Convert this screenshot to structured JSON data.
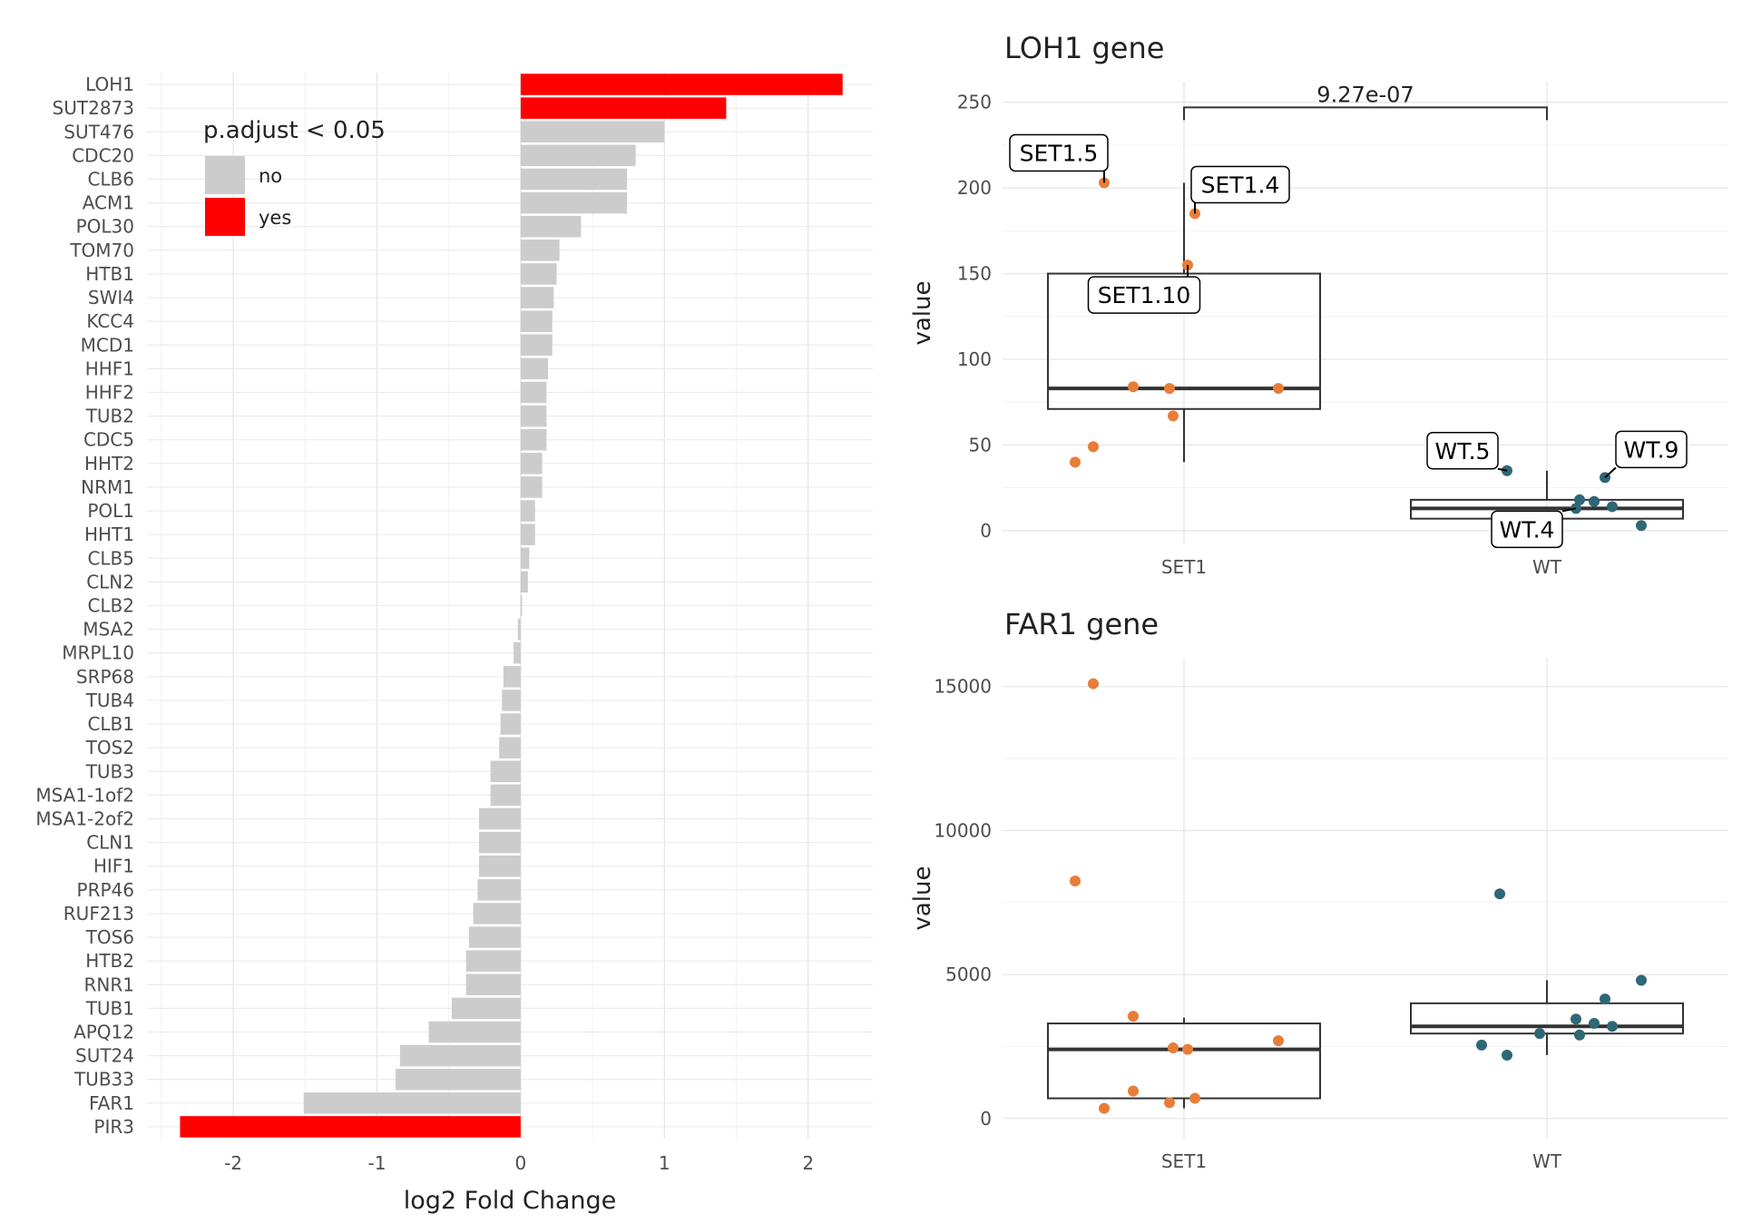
{
  "chart_data": [
    {
      "type": "bar",
      "orientation": "horizontal",
      "xlabel": "log2 Fold Change",
      "ylabel": "",
      "xlim": [
        -2.6,
        2.45
      ],
      "xticks": [
        -2,
        -1,
        0,
        1,
        2
      ],
      "grid": true,
      "legend": {
        "title": "p.adjust < 0.05",
        "placement": "top-left (inside plot)",
        "items": [
          {
            "label": "no",
            "color": "#cccccc"
          },
          {
            "label": "yes",
            "color": "#ff0000"
          }
        ]
      },
      "categories": [
        "LOH1",
        "SUT2873",
        "SUT476",
        "CDC20",
        "CLB6",
        "ACM1",
        "POL30",
        "TOM70",
        "HTB1",
        "SWI4",
        "KCC4",
        "MCD1",
        "HHF1",
        "HHF2",
        "TUB2",
        "CDC5",
        "HHT2",
        "NRM1",
        "POL1",
        "HHT1",
        "CLB5",
        "CLN2",
        "CLB2",
        "MSA2",
        "MRPL10",
        "SRP68",
        "TUB4",
        "CLB1",
        "TOS2",
        "TUB3",
        "MSA1-1of2",
        "MSA1-2of2",
        "CLN1",
        "HIF1",
        "PRP46",
        "RUF213",
        "TOS6",
        "HTB2",
        "RNR1",
        "TUB1",
        "APQ12",
        "SUT24",
        "TUB33",
        "FAR1",
        "PIR3"
      ],
      "values": [
        2.24,
        1.43,
        1.0,
        0.8,
        0.74,
        0.74,
        0.42,
        0.27,
        0.25,
        0.23,
        0.22,
        0.22,
        0.19,
        0.18,
        0.18,
        0.18,
        0.15,
        0.15,
        0.1,
        0.1,
        0.06,
        0.05,
        0.01,
        -0.02,
        -0.05,
        -0.12,
        -0.13,
        -0.14,
        -0.15,
        -0.21,
        -0.21,
        -0.29,
        -0.29,
        -0.29,
        -0.3,
        -0.33,
        -0.36,
        -0.38,
        -0.38,
        -0.48,
        -0.64,
        -0.84,
        -0.87,
        -1.51,
        -2.37
      ],
      "significant": [
        "yes",
        "yes",
        "no",
        "no",
        "no",
        "no",
        "no",
        "no",
        "no",
        "no",
        "no",
        "no",
        "no",
        "no",
        "no",
        "no",
        "no",
        "no",
        "no",
        "no",
        "no",
        "no",
        "no",
        "no",
        "no",
        "no",
        "no",
        "no",
        "no",
        "no",
        "no",
        "no",
        "no",
        "no",
        "no",
        "no",
        "no",
        "no",
        "no",
        "no",
        "no",
        "no",
        "no",
        "no",
        "yes"
      ]
    },
    {
      "type": "box",
      "title": "LOH1 gene",
      "xlabel": "",
      "ylabel": "value",
      "categories": [
        "SET1",
        "WT"
      ],
      "ylim": [
        -8,
        262
      ],
      "yticks": [
        0,
        50,
        100,
        150,
        200,
        250
      ],
      "colors": {
        "SET1": "#e87d3a",
        "WT": "#2e6776"
      },
      "boxes": [
        {
          "group": "SET1",
          "min": 40,
          "q1": 71,
          "median": 83,
          "q3": 150,
          "max": 203
        },
        {
          "group": "WT",
          "min": 0,
          "q1": 7,
          "median": 13,
          "q3": 18,
          "max": 35
        }
      ],
      "points": [
        {
          "group": "SET1",
          "offset": -0.3,
          "value": 40
        },
        {
          "group": "SET1",
          "offset": -0.25,
          "value": 49
        },
        {
          "group": "SET1",
          "offset": -0.22,
          "value": 203
        },
        {
          "group": "SET1",
          "offset": -0.14,
          "value": 84
        },
        {
          "group": "SET1",
          "offset": -0.04,
          "value": 83
        },
        {
          "group": "SET1",
          "offset": -0.03,
          "value": 67
        },
        {
          "group": "SET1",
          "offset": 0.01,
          "value": 155
        },
        {
          "group": "SET1",
          "offset": 0.03,
          "value": 185
        },
        {
          "group": "SET1",
          "offset": 0.26,
          "value": 83
        },
        {
          "group": "WT",
          "offset": -0.11,
          "value": 35
        },
        {
          "group": "WT",
          "offset": 0.08,
          "value": 13
        },
        {
          "group": "WT",
          "offset": 0.09,
          "value": 18
        },
        {
          "group": "WT",
          "offset": 0.13,
          "value": 17
        },
        {
          "group": "WT",
          "offset": 0.16,
          "value": 31
        },
        {
          "group": "WT",
          "offset": 0.18,
          "value": 14
        },
        {
          "group": "WT",
          "offset": 0.26,
          "value": 3
        }
      ],
      "labels": [
        {
          "text": "SET1.5",
          "group": "SET1",
          "offset": -0.22,
          "value": 203
        },
        {
          "text": "SET1.4",
          "group": "SET1",
          "offset": 0.03,
          "value": 185
        },
        {
          "text": "SET1.10",
          "group": "SET1",
          "offset": 0.01,
          "value": 155
        },
        {
          "text": "WT.5",
          "group": "WT",
          "offset": -0.11,
          "value": 35
        },
        {
          "text": "WT.9",
          "group": "WT",
          "offset": 0.16,
          "value": 31
        },
        {
          "text": "WT.4",
          "group": "WT",
          "offset": 0.08,
          "value": 13
        }
      ],
      "comparison": {
        "groups": [
          "SET1",
          "WT"
        ],
        "value": 247,
        "label": "9.27e-07"
      }
    },
    {
      "type": "box",
      "title": "FAR1 gene",
      "xlabel": "",
      "ylabel": "value",
      "categories": [
        "SET1",
        "WT"
      ],
      "ylim": [
        -700,
        16000
      ],
      "yticks": [
        0,
        5000,
        10000,
        15000
      ],
      "colors": {
        "SET1": "#e87d3a",
        "WT": "#2e6776"
      },
      "boxes": [
        {
          "group": "SET1",
          "min": 350,
          "q1": 700,
          "median": 2400,
          "q3": 3300,
          "max": 3500
        },
        {
          "group": "WT",
          "min": 2200,
          "q1": 2950,
          "median": 3200,
          "q3": 4000,
          "max": 4800
        }
      ],
      "points": [
        {
          "group": "SET1",
          "offset": -0.3,
          "value": 8250
        },
        {
          "group": "SET1",
          "offset": -0.25,
          "value": 15100
        },
        {
          "group": "SET1",
          "offset": -0.22,
          "value": 350
        },
        {
          "group": "SET1",
          "offset": -0.14,
          "value": 3550
        },
        {
          "group": "SET1",
          "offset": -0.14,
          "value": 950
        },
        {
          "group": "SET1",
          "offset": -0.04,
          "value": 550
        },
        {
          "group": "SET1",
          "offset": -0.03,
          "value": 2450
        },
        {
          "group": "SET1",
          "offset": 0.01,
          "value": 2400
        },
        {
          "group": "SET1",
          "offset": 0.03,
          "value": 700
        },
        {
          "group": "SET1",
          "offset": 0.26,
          "value": 2700
        },
        {
          "group": "WT",
          "offset": -0.18,
          "value": 2550
        },
        {
          "group": "WT",
          "offset": -0.13,
          "value": 7800
        },
        {
          "group": "WT",
          "offset": -0.11,
          "value": 2200
        },
        {
          "group": "WT",
          "offset": -0.02,
          "value": 2950
        },
        {
          "group": "WT",
          "offset": 0.08,
          "value": 3450
        },
        {
          "group": "WT",
          "offset": 0.09,
          "value": 2900
        },
        {
          "group": "WT",
          "offset": 0.13,
          "value": 3300
        },
        {
          "group": "WT",
          "offset": 0.16,
          "value": 4150
        },
        {
          "group": "WT",
          "offset": 0.18,
          "value": 3200
        },
        {
          "group": "WT",
          "offset": 0.26,
          "value": 4800
        }
      ]
    }
  ]
}
